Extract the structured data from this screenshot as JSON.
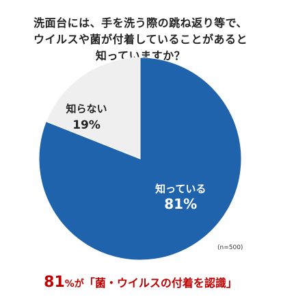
{
  "title_lines": [
    "洗面台には、手を洗う際の跳ね返り等で、",
    "ウイルスや菌が付着していることがあると",
    "知っていますか？"
  ],
  "sample_size": "(n=500)",
  "footer": {
    "pct": "81",
    "unit": "%が",
    "rest": "「菌・ウイルスの付着を認識」"
  },
  "colors": {
    "known": "#1f63ad",
    "unknown": "#efefef",
    "accent": "#c00000"
  },
  "chart_data": {
    "type": "pie",
    "title": "洗面台には、手を洗う際の跳ね返り等で、ウイルスや菌が付着していることがあると知っていますか？",
    "slices": [
      {
        "label": "知っている",
        "value": 81,
        "value_label": "81%",
        "color": "#1f63ad",
        "text_color": "#ffffff"
      },
      {
        "label": "知らない",
        "value": 19,
        "value_label": "19%",
        "color": "#efefef",
        "text_color": "#222222"
      }
    ],
    "start_angle_deg": 0,
    "direction": "clockwise"
  }
}
